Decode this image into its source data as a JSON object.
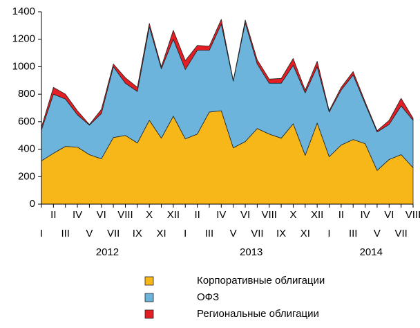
{
  "chart_data": {
    "type": "stacked_area",
    "categories": [
      "I",
      "II",
      "III",
      "IV",
      "V",
      "VI",
      "VII",
      "VIII",
      "IX",
      "X",
      "XI",
      "XII",
      "I",
      "II",
      "III",
      "IV",
      "V",
      "VI",
      "VII",
      "VIII",
      "IX",
      "X",
      "XI",
      "XII",
      "I",
      "II",
      "III",
      "IV",
      "V",
      "VI",
      "VII",
      "VIII"
    ],
    "year_labels": [
      "2012",
      "2013",
      "2014"
    ],
    "series": [
      {
        "name": "Корпоративные облигации",
        "color": "#f7b718",
        "values": [
          315,
          370,
          420,
          415,
          360,
          330,
          485,
          500,
          445,
          610,
          480,
          640,
          475,
          510,
          670,
          680,
          410,
          455,
          550,
          510,
          480,
          585,
          355,
          590,
          345,
          430,
          470,
          440,
          245,
          325,
          360,
          265
        ]
      },
      {
        "name": "ОФЗ",
        "color": "#6cb4dc",
        "values": [
          225,
          430,
          345,
          235,
          215,
          330,
          515,
          380,
          375,
          680,
          505,
          560,
          505,
          610,
          450,
          630,
          485,
          865,
          470,
          370,
          400,
          425,
          455,
          410,
          325,
          400,
          470,
          290,
          280,
          255,
          355,
          345
        ]
      },
      {
        "name": "Региональные облигации",
        "color": "#e31e24",
        "values": [
          20,
          50,
          35,
          30,
          5,
          30,
          20,
          40,
          30,
          25,
          15,
          65,
          65,
          35,
          30,
          35,
          5,
          20,
          30,
          30,
          35,
          50,
          20,
          40,
          10,
          20,
          25,
          15,
          10,
          30,
          55,
          15
        ]
      }
    ],
    "ylim": [
      0,
      1400
    ],
    "yticks": [
      0,
      200,
      400,
      600,
      800,
      1000,
      1200,
      1400
    ]
  }
}
